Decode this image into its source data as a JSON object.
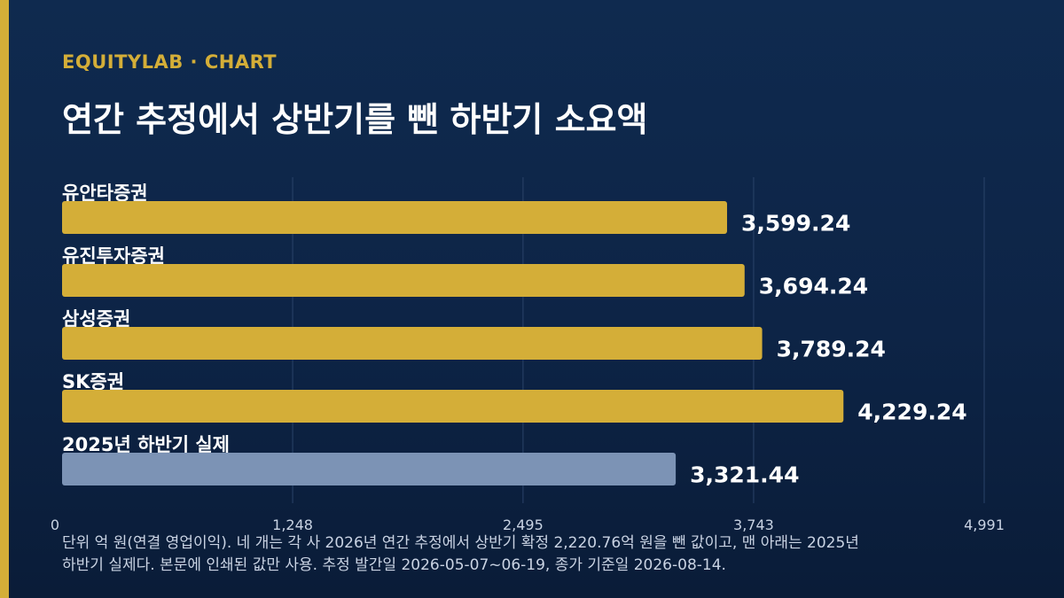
{
  "header": {
    "eyebrow": "EQUITYLAB · CHART",
    "title": "연간 추정에서 상반기를 뺀 하반기 소요액"
  },
  "colors": {
    "background": "#0f2a4f",
    "accent": "#d4ae38",
    "estimate_bar": "#d4ae38",
    "actual_bar": "#7c93b5",
    "grid": "#2a4369",
    "tick_text": "#c9d3e3"
  },
  "chart_data": {
    "type": "bar",
    "orientation": "horizontal",
    "title": "연간 추정에서 상반기를 뺀 하반기 소요액",
    "xlabel": "",
    "ylabel": "",
    "xlim": [
      0,
      4991
    ],
    "xticks": [
      0,
      1248,
      2495,
      3743,
      4991
    ],
    "xtick_labels": [
      "0",
      "1,248",
      "2,495",
      "3,743",
      "4,991"
    ],
    "grid": true,
    "bars": [
      {
        "label": "유안타증권",
        "value": 3599.24,
        "value_label": "3,599.24",
        "kind": "estimate"
      },
      {
        "label": "유진투자증권",
        "value": 3694.24,
        "value_label": "3,694.24",
        "kind": "estimate"
      },
      {
        "label": "삼성증권",
        "value": 3789.24,
        "value_label": "3,789.24",
        "kind": "estimate"
      },
      {
        "label": "SK증권",
        "value": 4229.24,
        "value_label": "4,229.24",
        "kind": "estimate"
      },
      {
        "label": "2025년 하반기 실제",
        "value": 3321.44,
        "value_label": "3,321.44",
        "kind": "actual"
      }
    ]
  },
  "footnote": "단위 억 원(연결 영업이익). 네 개는 각 사 2026년 연간 추정에서 상반기 확정 2,220.76억 원을 뺀 값이고, 맨 아래는 2025년 하반기 실제다. 본문에 인쇄된 값만 사용. 추정 발간일 2026-05-07~06-19, 종가 기준일 2026-08-14."
}
